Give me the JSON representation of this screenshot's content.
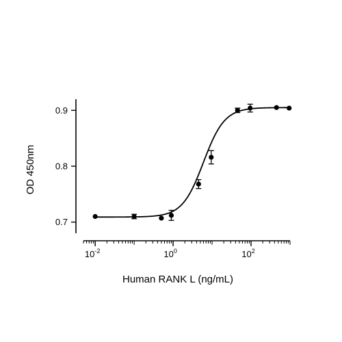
{
  "chart_data": {
    "type": "scatter",
    "xlabel": "Human RANK L (ng/mL)",
    "ylabel": "OD 450nm",
    "x_scale": "log10",
    "xlim": [
      0.005,
      1000
    ],
    "ylim": [
      0.68,
      0.92
    ],
    "x_ticks": [
      {
        "value": 0.01,
        "base": "10",
        "exp": "-2"
      },
      {
        "value": 1,
        "base": "10",
        "exp": "0"
      },
      {
        "value": 100,
        "base": "10",
        "exp": "2"
      }
    ],
    "y_ticks": [
      {
        "value": 0.7,
        "label": "0.7"
      },
      {
        "value": 0.8,
        "label": "0.8"
      },
      {
        "value": 0.9,
        "label": "0.9"
      }
    ],
    "grid": false,
    "legend": "none",
    "series": [
      {
        "points": [
          {
            "x": 0.01,
            "y": 0.71,
            "err": 0.0
          },
          {
            "x": 0.1,
            "y": 0.71,
            "err": 0.004
          },
          {
            "x": 0.5,
            "y": 0.707,
            "err": 0.0
          },
          {
            "x": 0.9,
            "y": 0.712,
            "err": 0.009
          },
          {
            "x": 4.5,
            "y": 0.768,
            "err": 0.008
          },
          {
            "x": 9.5,
            "y": 0.816,
            "err": 0.012
          },
          {
            "x": 45,
            "y": 0.9,
            "err": 0.004
          },
          {
            "x": 95,
            "y": 0.904,
            "err": 0.007
          },
          {
            "x": 450,
            "y": 0.905,
            "err": 0.0
          },
          {
            "x": 950,
            "y": 0.904,
            "err": 0.0
          }
        ],
        "fit": {
          "bottom": 0.709,
          "top": 0.905,
          "ec50": 6.0,
          "hill": 1.6
        }
      }
    ]
  }
}
